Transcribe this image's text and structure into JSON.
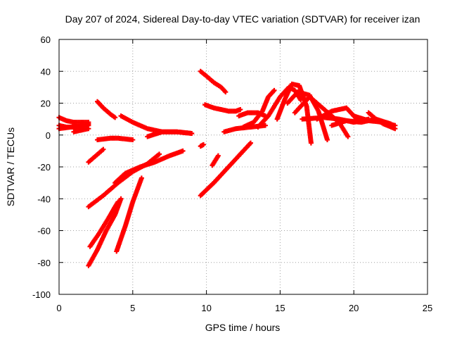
{
  "chart_data": {
    "type": "scatter",
    "title": "Day 207 of 2024, Sidereal Day-to-day VTEC variation (SDTVAR) for receiver izan",
    "xlabel": "GPS time / hours",
    "ylabel": "SDTVAR / TECUs",
    "xlim": [
      0,
      25
    ],
    "ylim": [
      -100,
      60
    ],
    "xticks": [
      0,
      5,
      10,
      15,
      20,
      25
    ],
    "yticks": [
      -100,
      -80,
      -60,
      -40,
      -20,
      0,
      20,
      40,
      60
    ],
    "grid": true,
    "marker": "plus",
    "color": "#ff0000",
    "series": [
      {
        "name": "s01",
        "x": [
          0.0,
          0.5,
          1.0,
          1.5,
          2.0
        ],
        "y": [
          11,
          9,
          8,
          8,
          8
        ]
      },
      {
        "name": "s02",
        "x": [
          0.0,
          0.5,
          1.0,
          1.5,
          2.0
        ],
        "y": [
          6,
          5,
          5,
          5,
          6
        ]
      },
      {
        "name": "s03",
        "x": [
          0.0,
          0.8,
          1.6,
          2.0
        ],
        "y": [
          4,
          5,
          6,
          7
        ]
      },
      {
        "name": "s04",
        "x": [
          1.0,
          1.5,
          2.0
        ],
        "y": [
          2,
          3,
          4
        ]
      },
      {
        "name": "s05",
        "x": [
          2.0,
          2.5,
          3.0
        ],
        "y": [
          -17,
          -13,
          -9
        ]
      },
      {
        "name": "s06",
        "x": [
          2.6,
          3.0,
          3.5,
          3.8
        ],
        "y": [
          21,
          17,
          13,
          11
        ]
      },
      {
        "name": "s07",
        "x": [
          2.6,
          3.5,
          4.0,
          5.0
        ],
        "y": [
          -3,
          -2,
          -2,
          -3
        ]
      },
      {
        "name": "s08",
        "x": [
          4.2,
          5.0,
          6.0,
          7.0,
          8.0,
          9.0
        ],
        "y": [
          12,
          8,
          4,
          2,
          2,
          1
        ]
      },
      {
        "name": "s09",
        "x": [
          6.0,
          7.0,
          8.0,
          9.0
        ],
        "y": [
          -1,
          2,
          2,
          1
        ]
      },
      {
        "name": "s10",
        "x": [
          2.0,
          3.0,
          4.0,
          5.0,
          6.0,
          6.8
        ],
        "y": [
          -45,
          -38,
          -30,
          -23,
          -18,
          -12
        ]
      },
      {
        "name": "s11",
        "x": [
          3.8,
          4.5,
          5.5,
          6.5,
          7.5,
          8.4
        ],
        "y": [
          -30,
          -24,
          -20,
          -17,
          -13,
          -10
        ]
      },
      {
        "name": "s12",
        "x": [
          2.0,
          2.6,
          3.2,
          3.8,
          4.2
        ],
        "y": [
          -82,
          -72,
          -60,
          -50,
          -40
        ]
      },
      {
        "name": "s13",
        "x": [
          2.1,
          2.7,
          3.3,
          3.8,
          4.0
        ],
        "y": [
          -70,
          -62,
          -53,
          -45,
          -42
        ]
      },
      {
        "name": "s14",
        "x": [
          3.9,
          4.5,
          5.0,
          5.6
        ],
        "y": [
          -73,
          -57,
          -42,
          -27
        ]
      },
      {
        "name": "s15",
        "x": [
          9.6,
          10.0,
          10.5,
          11.0,
          11.3
        ],
        "y": [
          40,
          37,
          33,
          30,
          27
        ]
      },
      {
        "name": "s16",
        "x": [
          9.9,
          10.5,
          11.0,
          11.5,
          12.0,
          12.3
        ],
        "y": [
          19,
          17,
          16,
          15,
          15,
          16
        ]
      },
      {
        "name": "s17",
        "x": [
          9.6,
          10.5,
          11.5,
          12.5,
          13.0
        ],
        "y": [
          -38,
          -30,
          -20,
          -10,
          -5
        ]
      },
      {
        "name": "s18",
        "x": [
          10.4,
          10.8
        ],
        "y": [
          -19,
          -13
        ]
      },
      {
        "name": "s19",
        "x": [
          9.6,
          9.8
        ],
        "y": [
          -7,
          -6
        ]
      },
      {
        "name": "s20",
        "x": [
          11.2,
          12.0,
          13.0,
          14.0
        ],
        "y": [
          2,
          4,
          5,
          6
        ]
      },
      {
        "name": "s21",
        "x": [
          12.2,
          12.8,
          13.5,
          14.0
        ],
        "y": [
          12,
          14,
          14,
          12
        ]
      },
      {
        "name": "s22",
        "x": [
          12.5,
          13.2,
          13.8,
          14.2,
          14.6
        ],
        "y": [
          5,
          8,
          15,
          24,
          28
        ]
      },
      {
        "name": "s23",
        "x": [
          13.5,
          14.2,
          15.0,
          15.6,
          16.0,
          16.4
        ],
        "y": [
          5,
          12,
          24,
          30,
          28,
          22
        ]
      },
      {
        "name": "s24",
        "x": [
          14.8,
          15.3,
          15.8,
          16.3,
          16.8,
          17.1
        ],
        "y": [
          10,
          22,
          32,
          31,
          18,
          -5
        ]
      },
      {
        "name": "s25",
        "x": [
          15.5,
          16.2,
          17.0,
          17.6,
          18.2
        ],
        "y": [
          20,
          27,
          25,
          15,
          -3
        ]
      },
      {
        "name": "s26",
        "x": [
          16.0,
          17.0,
          18.0,
          19.0,
          19.6
        ],
        "y": [
          14,
          24,
          16,
          8,
          -1
        ]
      },
      {
        "name": "s27",
        "x": [
          17.5,
          18.5,
          19.5,
          20.2
        ],
        "y": [
          10,
          15,
          17,
          10
        ]
      },
      {
        "name": "s28",
        "x": [
          16.5,
          18.0,
          19.0,
          20.0,
          21.0
        ],
        "y": [
          10,
          11,
          10,
          8,
          10
        ]
      },
      {
        "name": "s29",
        "x": [
          18.5,
          19.5,
          20.5,
          21.5,
          22.5
        ],
        "y": [
          6,
          9,
          8,
          10,
          7
        ]
      },
      {
        "name": "s30",
        "x": [
          20.0,
          21.0,
          22.0,
          22.8
        ],
        "y": [
          12,
          9,
          8,
          6
        ]
      },
      {
        "name": "s31",
        "x": [
          21.0,
          21.5,
          22.0,
          22.8
        ],
        "y": [
          14,
          10,
          7,
          4
        ]
      }
    ]
  }
}
